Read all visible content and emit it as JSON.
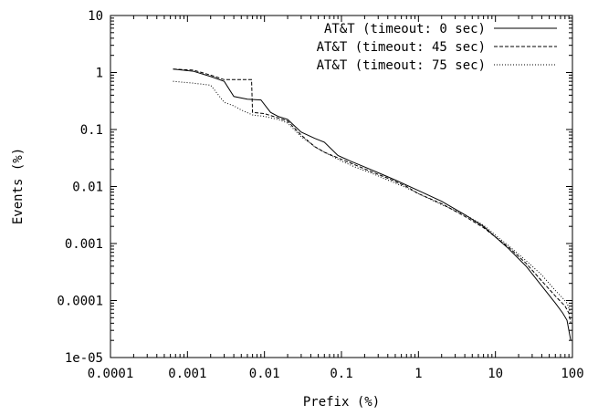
{
  "chart_data": {
    "type": "line",
    "title": "",
    "xlabel": "Prefix (%)",
    "ylabel": "Events (%)",
    "x_scale": "log",
    "y_scale": "log",
    "xlim": [
      0.0001,
      100
    ],
    "ylim": [
      1e-05,
      10
    ],
    "x_ticks": [
      {
        "value": 0.0001,
        "label": "0.0001"
      },
      {
        "value": 0.001,
        "label": "0.001"
      },
      {
        "value": 0.01,
        "label": "0.01"
      },
      {
        "value": 0.1,
        "label": "0.1"
      },
      {
        "value": 1,
        "label": "1"
      },
      {
        "value": 10,
        "label": "10"
      },
      {
        "value": 100,
        "label": "100"
      }
    ],
    "y_ticks": [
      {
        "value": 1e-05,
        "label": "1e-05"
      },
      {
        "value": 0.0001,
        "label": "0.0001"
      },
      {
        "value": 0.001,
        "label": "0.001"
      },
      {
        "value": 0.01,
        "label": "0.01"
      },
      {
        "value": 0.1,
        "label": "0.1"
      },
      {
        "value": 1,
        "label": "1"
      },
      {
        "value": 10,
        "label": "10"
      }
    ],
    "grid": false,
    "legend_position": "top-right",
    "series": [
      {
        "name": "AT&T (timeout: 0 sec)",
        "dash": "solid",
        "points": [
          [
            0.00065,
            1.15
          ],
          [
            0.0012,
            1.05
          ],
          [
            0.002,
            0.85
          ],
          [
            0.003,
            0.7
          ],
          [
            0.004,
            0.38
          ],
          [
            0.006,
            0.34
          ],
          [
            0.009,
            0.33
          ],
          [
            0.012,
            0.2
          ],
          [
            0.015,
            0.17
          ],
          [
            0.02,
            0.15
          ],
          [
            0.03,
            0.09
          ],
          [
            0.045,
            0.07
          ],
          [
            0.06,
            0.06
          ],
          [
            0.09,
            0.035
          ],
          [
            0.13,
            0.028
          ],
          [
            0.2,
            0.022
          ],
          [
            0.35,
            0.016
          ],
          [
            0.5,
            0.013
          ],
          [
            1,
            0.0085
          ],
          [
            2,
            0.0055
          ],
          [
            4,
            0.0032
          ],
          [
            7,
            0.002
          ],
          [
            10,
            0.0013
          ],
          [
            15,
            0.0008
          ],
          [
            25,
            0.0004
          ],
          [
            40,
            0.00018
          ],
          [
            60,
            9e-05
          ],
          [
            75,
            6e-05
          ],
          [
            85,
            4.5e-05
          ],
          [
            95,
            2e-05
          ]
        ]
      },
      {
        "name": "AT&T (timeout: 45 sec)",
        "dash": "dashed",
        "points": [
          [
            0.00065,
            1.15
          ],
          [
            0.0012,
            1.1
          ],
          [
            0.002,
            0.9
          ],
          [
            0.003,
            0.75
          ],
          [
            0.005,
            0.75
          ],
          [
            0.0068,
            0.75
          ],
          [
            0.007,
            0.2
          ],
          [
            0.01,
            0.19
          ],
          [
            0.015,
            0.16
          ],
          [
            0.02,
            0.14
          ],
          [
            0.03,
            0.08
          ],
          [
            0.045,
            0.05
          ],
          [
            0.06,
            0.04
          ],
          [
            0.1,
            0.03
          ],
          [
            0.15,
            0.024
          ],
          [
            0.25,
            0.018
          ],
          [
            0.4,
            0.014
          ],
          [
            0.7,
            0.01
          ],
          [
            1,
            0.0075
          ],
          [
            2,
            0.005
          ],
          [
            4,
            0.003
          ],
          [
            7,
            0.0019
          ],
          [
            10,
            0.0013
          ],
          [
            15,
            0.00085
          ],
          [
            25,
            0.00045
          ],
          [
            40,
            0.00022
          ],
          [
            60,
            0.00012
          ],
          [
            80,
            8e-05
          ],
          [
            90,
            6e-05
          ],
          [
            95,
            4e-05
          ]
        ]
      },
      {
        "name": "AT&T (timeout: 75 sec)",
        "dash": "dotted",
        "points": [
          [
            0.00065,
            0.7
          ],
          [
            0.0012,
            0.65
          ],
          [
            0.002,
            0.6
          ],
          [
            0.003,
            0.3
          ],
          [
            0.004,
            0.26
          ],
          [
            0.005,
            0.22
          ],
          [
            0.007,
            0.18
          ],
          [
            0.01,
            0.17
          ],
          [
            0.015,
            0.15
          ],
          [
            0.02,
            0.13
          ],
          [
            0.03,
            0.075
          ],
          [
            0.045,
            0.05
          ],
          [
            0.06,
            0.04
          ],
          [
            0.1,
            0.028
          ],
          [
            0.15,
            0.022
          ],
          [
            0.25,
            0.017
          ],
          [
            0.4,
            0.013
          ],
          [
            0.7,
            0.0095
          ],
          [
            1,
            0.0075
          ],
          [
            2,
            0.0048
          ],
          [
            4,
            0.0032
          ],
          [
            7,
            0.0021
          ],
          [
            10,
            0.0014
          ],
          [
            15,
            0.0009
          ],
          [
            25,
            0.0005
          ],
          [
            40,
            0.00028
          ],
          [
            60,
            0.00015
          ],
          [
            75,
            0.00011
          ],
          [
            85,
            9e-05
          ],
          [
            95,
            6e-05
          ]
        ]
      }
    ]
  }
}
